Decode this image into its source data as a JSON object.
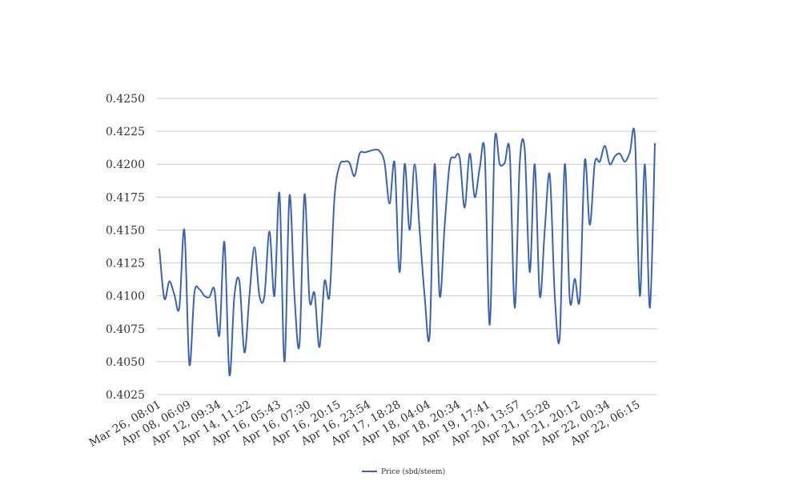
{
  "chart_data": {
    "type": "line",
    "title": "",
    "xlabel": "",
    "ylabel": "",
    "ylim": [
      0.4025,
      0.425
    ],
    "yticks": [
      "0.4250",
      "0.4225",
      "0.4200",
      "0.4175",
      "0.4150",
      "0.4125",
      "0.4100",
      "0.4075",
      "0.4050",
      "0.4025"
    ],
    "x_tick_labels": [
      "Mar 26, 08:01",
      "Apr 08, 06:09",
      "Apr 12, 09:34",
      "Apr 14, 11:22",
      "Apr 16, 05:43",
      "Apr 16, 07:30",
      "Apr 16, 20:15",
      "Apr 16, 23:54",
      "Apr 17, 18:28",
      "Apr 18, 04:04",
      "Apr 18, 20:34",
      "Apr 19, 17:41",
      "Apr 20, 13:57",
      "Apr 21, 15:28",
      "Apr 21, 20:12",
      "Apr 22, 00:34",
      "Apr 22, 06:15"
    ],
    "grid": true,
    "legend_position": "bottom",
    "series": [
      {
        "name": "Price (sbd/steem)",
        "color": "#3a63b4",
        "values": [
          0.4136,
          0.4098,
          0.4111,
          0.4101,
          0.4091,
          0.415,
          0.4048,
          0.4102,
          0.4105,
          0.41,
          0.4099,
          0.4105,
          0.407,
          0.4141,
          0.404,
          0.41,
          0.4111,
          0.4057,
          0.41,
          0.4137,
          0.41,
          0.41,
          0.4149,
          0.41,
          0.4178,
          0.405,
          0.4176,
          0.41,
          0.4063,
          0.4177,
          0.4097,
          0.4102,
          0.4061,
          0.4111,
          0.41,
          0.4175,
          0.4199,
          0.4202,
          0.4201,
          0.4191,
          0.4208,
          0.4209,
          0.421,
          0.4211,
          0.421,
          0.4201,
          0.417,
          0.4201,
          0.4118,
          0.42,
          0.415,
          0.42,
          0.415,
          0.41,
          0.407,
          0.42,
          0.41,
          0.4153,
          0.42,
          0.4205,
          0.4205,
          0.4167,
          0.4208,
          0.4175,
          0.4197,
          0.4209,
          0.4078,
          0.4217,
          0.42,
          0.4201,
          0.4209,
          0.4091,
          0.4201,
          0.4211,
          0.4118,
          0.42,
          0.41,
          0.415,
          0.4192,
          0.41,
          0.4069,
          0.42,
          0.4097,
          0.4113,
          0.4098,
          0.4203,
          0.4154,
          0.4201,
          0.4202,
          0.4214,
          0.42,
          0.4206,
          0.4208,
          0.4202,
          0.4209,
          0.4221,
          0.41,
          0.42,
          0.4091,
          0.4216
        ]
      }
    ]
  }
}
